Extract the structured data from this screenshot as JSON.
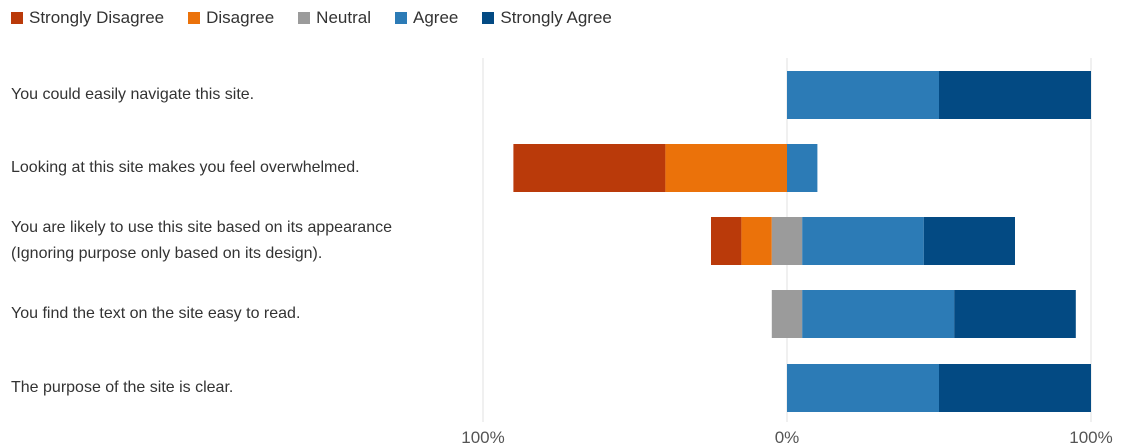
{
  "legend": [
    {
      "label": "Strongly Disagree",
      "color": "#BA3A0A"
    },
    {
      "label": "Disagree",
      "color": "#EB720A"
    },
    {
      "label": "Neutral",
      "color": "#9B9B9B"
    },
    {
      "label": "Agree",
      "color": "#2C7BB6"
    },
    {
      "label": "Strongly Agree",
      "color": "#034A83"
    }
  ],
  "chart_data": {
    "type": "bar",
    "orientation": "horizontal",
    "stacked": "diverging",
    "title": "",
    "xlabel": "",
    "ylabel": "",
    "xlim": [
      -100,
      100
    ],
    "xticks": [
      "100%",
      "0%",
      "100%"
    ],
    "grid": "vertical lines at ticks",
    "legend_position": "top-left",
    "categories": [
      [
        "You could easily navigate this site."
      ],
      [
        "Looking at this site makes you feel overwhelmed."
      ],
      [
        "You are likely to use this site based on its appearance",
        "(Ignoring purpose only based on its design)."
      ],
      [
        "You find the text on the site easy to read."
      ],
      [
        "The purpose of the site is clear."
      ]
    ],
    "series": [
      {
        "name": "Strongly Disagree",
        "values": [
          0,
          50,
          10,
          0,
          0
        ]
      },
      {
        "name": "Disagree",
        "values": [
          0,
          40,
          10,
          0,
          0
        ]
      },
      {
        "name": "Neutral",
        "values": [
          0,
          0,
          10,
          10,
          0
        ]
      },
      {
        "name": "Agree",
        "values": [
          50,
          10,
          40,
          50,
          50
        ]
      },
      {
        "name": "Strongly Agree",
        "values": [
          50,
          0,
          30,
          40,
          50
        ]
      }
    ]
  }
}
